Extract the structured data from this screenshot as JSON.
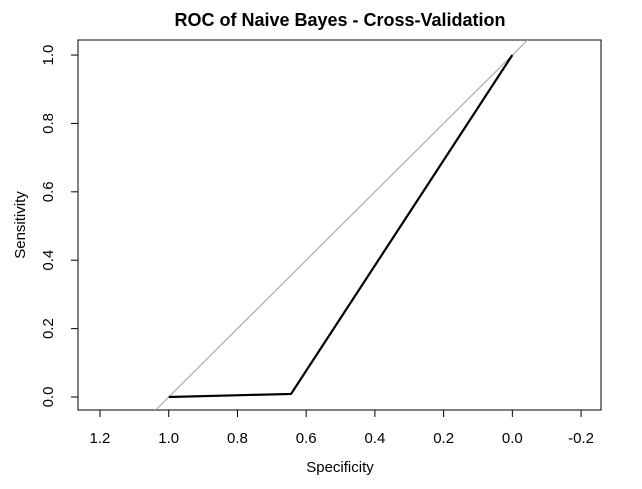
{
  "chart_data": {
    "type": "line",
    "title": "ROC of Naive Bayes - Cross-Validation",
    "xlabel": "Specificity",
    "ylabel": "Sensitivity",
    "x": [
      1.0,
      0.644,
      0.0
    ],
    "values": [
      0.0,
      0.009,
      1.0
    ],
    "color": "#000000",
    "reference_line": true,
    "reference_color": "#a0a0a0",
    "xlim": [
      1.264,
      -0.258
    ],
    "ylim": [
      -0.038,
      1.044
    ],
    "xticks": [
      1.2,
      {
        "value": 1.0,
        "label": "1.0"
      },
      0.8,
      0.6,
      0.4,
      0.2,
      {
        "value": 0.0,
        "label": "0.0"
      },
      -0.2
    ],
    "yticks": [
      {
        "value": 0.0,
        "label": "0.0"
      },
      0.2,
      0.4,
      0.6,
      0.8,
      {
        "value": 1.0,
        "label": "1.0"
      }
    ]
  }
}
